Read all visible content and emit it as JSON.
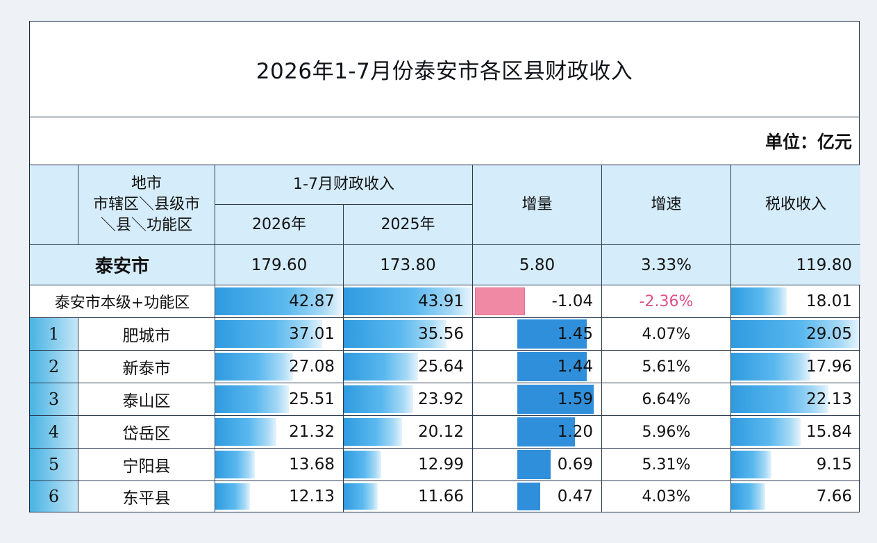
{
  "title": "2026年1-7月份泰安市各区县财政收入",
  "unit": "单位：亿元",
  "headers": {
    "region_line1": "地市",
    "region_line2": "市辖区＼县级市",
    "region_line3": "＼县＼功能区",
    "revenue_group": "1-7月财政收入",
    "year_2026": "2026年",
    "year_2025": "2025年",
    "increment": "增量",
    "growth": "增速",
    "tax": "税收收入"
  },
  "city_total": {
    "name": "泰安市",
    "rev2026": "179.60",
    "rev2025": "173.80",
    "increment": "5.80",
    "growth": "3.33%",
    "tax": "119.80"
  },
  "city_level": {
    "name": "泰安市本级+功能区",
    "rev2026": "42.87",
    "rev2025": "43.91",
    "increment": "-1.04",
    "growth": "-2.36%",
    "tax": "18.01"
  },
  "rows": [
    {
      "idx": "1",
      "name": "肥城市",
      "rev2026": "37.01",
      "rev2025": "35.56",
      "increment": "1.45",
      "growth": "4.07%",
      "tax": "29.05"
    },
    {
      "idx": "2",
      "name": "新泰市",
      "rev2026": "27.08",
      "rev2025": "25.64",
      "increment": "1.44",
      "growth": "5.61%",
      "tax": "17.96"
    },
    {
      "idx": "3",
      "name": "泰山区",
      "rev2026": "25.51",
      "rev2025": "23.92",
      "increment": "1.59",
      "growth": "6.64%",
      "tax": "22.13"
    },
    {
      "idx": "4",
      "name": "岱岳区",
      "rev2026": "21.32",
      "rev2025": "20.12",
      "increment": "1.20",
      "growth": "5.96%",
      "tax": "15.84"
    },
    {
      "idx": "5",
      "name": "宁阳县",
      "rev2026": "13.68",
      "rev2025": "12.99",
      "increment": "0.69",
      "growth": "5.31%",
      "tax": "9.15"
    },
    {
      "idx": "6",
      "name": "东平县",
      "rev2026": "12.13",
      "rev2025": "11.66",
      "increment": "0.47",
      "growth": "4.03%",
      "tax": "7.66"
    }
  ],
  "colors": {
    "header_bg": "#d5ecfa",
    "bar": "#2f9be0",
    "negative_bar": "#f08aa4",
    "negative_text": "#e24f86"
  }
}
